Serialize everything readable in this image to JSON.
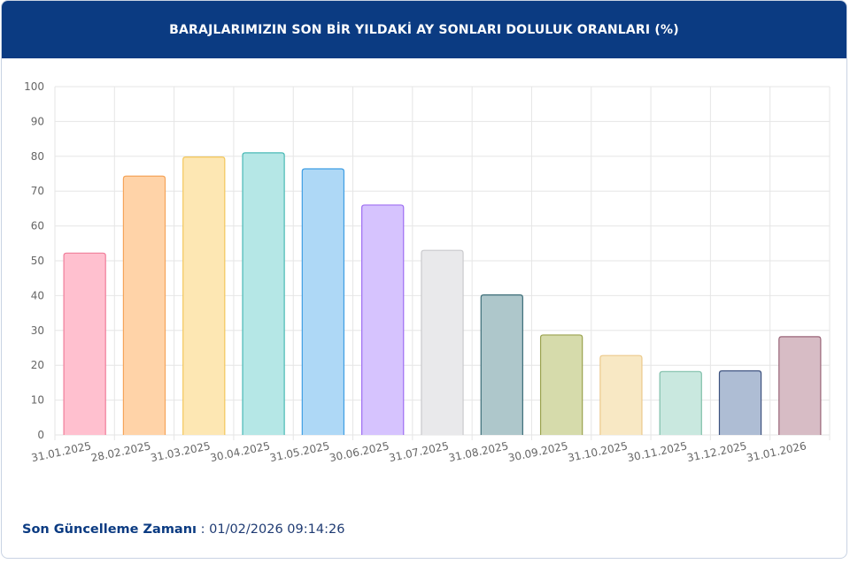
{
  "header": {
    "title": "BARAJLARIMIZIN SON BİR YILDAKİ AY SONLARI DOLULUK ORANLARI (%)"
  },
  "footer": {
    "label": "Son Güncelleme Zamanı",
    "separator": " : ",
    "value": "01/02/2026 09:14:26"
  },
  "chart_data": {
    "type": "bar",
    "title": "BARAJLARIMIZIN SON BİR YILDAKİ AY SONLARI DOLULUK ORANLARI (%)",
    "xlabel": "",
    "ylabel": "",
    "ylim": [
      0,
      100
    ],
    "yticks": [
      0,
      10,
      20,
      30,
      40,
      50,
      60,
      70,
      80,
      90,
      100
    ],
    "grid": true,
    "legend": "none",
    "categories": [
      "31.01.2025",
      "28.02.2025",
      "31.03.2025",
      "30.04.2025",
      "31.05.2025",
      "30.06.2025",
      "31.07.2025",
      "31.08.2025",
      "30.09.2025",
      "31.10.2025",
      "30.11.2025",
      "31.12.2025",
      "31.01.2026"
    ],
    "values": [
      52.2,
      74.3,
      79.8,
      81.0,
      76.4,
      66.0,
      53.0,
      40.2,
      28.7,
      22.8,
      18.2,
      18.4,
      28.2
    ],
    "fill_colors": [
      "#ffc0cf",
      "#ffd3a8",
      "#fde7b3",
      "#b5e7e6",
      "#aed8f6",
      "#d6c3fe",
      "#e9e9eb",
      "#aec7cb",
      "#d6dbab",
      "#f8e8c4",
      "#c9e8df",
      "#aebdd4",
      "#d7bcc5"
    ],
    "border_colors": [
      "#f07d9a",
      "#f5a45a",
      "#f2c75c",
      "#49b9b5",
      "#3f9ee3",
      "#9d6ef2",
      "#c9c9cc",
      "#3c6d78",
      "#9aa24e",
      "#ecc98b",
      "#7fbfa9",
      "#3d527f",
      "#9a6578"
    ]
  }
}
